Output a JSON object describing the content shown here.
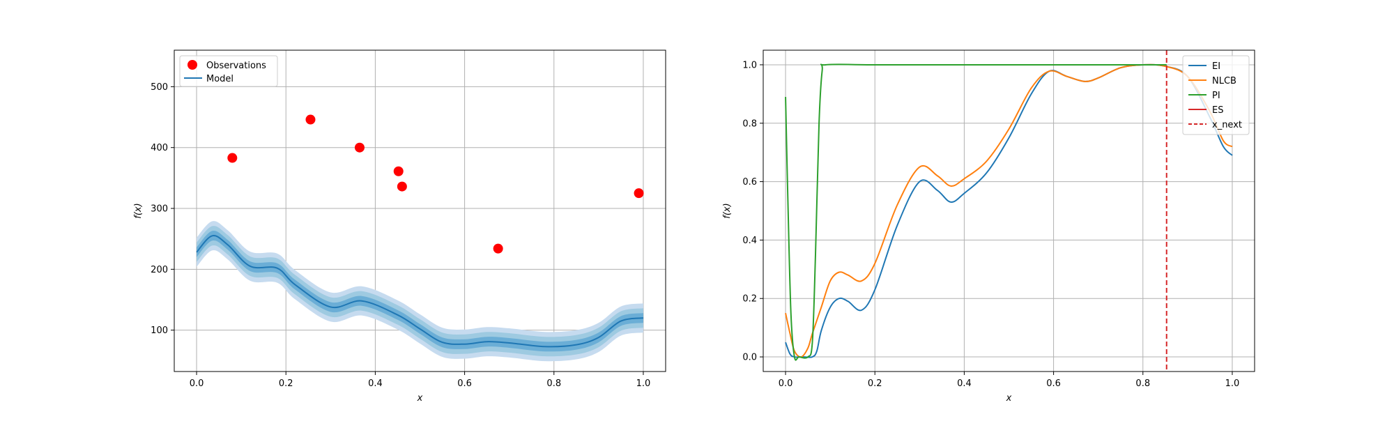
{
  "chart_data": [
    {
      "type": "scatter+line",
      "xlabel": "x",
      "ylabel": "f(x)",
      "xlim": [
        -0.05,
        1.05
      ],
      "ylim": [
        32,
        560
      ],
      "xticks": [
        0.0,
        0.2,
        0.4,
        0.6,
        0.8,
        1.0
      ],
      "xtick_labels": [
        "0.0",
        "0.2",
        "0.4",
        "0.6",
        "0.8",
        "1.0"
      ],
      "yticks": [
        100,
        200,
        300,
        400,
        500
      ],
      "ytick_labels": [
        "100",
        "200",
        "300",
        "400",
        "500"
      ],
      "grid": true,
      "legend_position": "top-left",
      "legend": [
        {
          "label": "Observations",
          "marker": "circle",
          "color": "#ff0000"
        },
        {
          "label": "Model",
          "marker": "line",
          "color": "#1f77b4"
        }
      ],
      "observations": {
        "name": "Observations",
        "x": [
          0.08,
          0.255,
          0.365,
          0.452,
          0.46,
          0.675,
          0.99
        ],
        "y": [
          383,
          446,
          400,
          361,
          336,
          234,
          325
        ]
      },
      "model": {
        "name": "Model",
        "x": [
          0.0,
          0.035,
          0.07,
          0.12,
          0.18,
          0.22,
          0.3,
          0.37,
          0.45,
          0.5,
          0.55,
          0.6,
          0.65,
          0.7,
          0.78,
          0.85,
          0.9,
          0.95,
          1.0
        ],
        "y": [
          228,
          255,
          240,
          205,
          202,
          175,
          138,
          148,
          125,
          102,
          80,
          77,
          81,
          79,
          73,
          76,
          88,
          115,
          120
        ],
        "band_widths": [
          8,
          16,
          24
        ]
      }
    },
    {
      "type": "line",
      "xlabel": "x",
      "ylabel": "f(x)",
      "xlim": [
        -0.05,
        1.05
      ],
      "ylim": [
        -0.05,
        1.05
      ],
      "xticks": [
        0.0,
        0.2,
        0.4,
        0.6,
        0.8,
        1.0
      ],
      "xtick_labels": [
        "0.0",
        "0.2",
        "0.4",
        "0.6",
        "0.8",
        "1.0"
      ],
      "yticks": [
        0.0,
        0.2,
        0.4,
        0.6,
        0.8,
        1.0
      ],
      "ytick_labels": [
        "0.0",
        "0.2",
        "0.4",
        "0.6",
        "0.8",
        "1.0"
      ],
      "grid": true,
      "legend_position": "top-right",
      "vline": {
        "name": "x_next",
        "x": 0.853,
        "color": "#d62728",
        "style": "dashed"
      },
      "series": [
        {
          "name": "EI",
          "color": "#1f77b4",
          "x": [
            0.0,
            0.01,
            0.02,
            0.04,
            0.06,
            0.07,
            0.08,
            0.1,
            0.12,
            0.14,
            0.17,
            0.2,
            0.25,
            0.3,
            0.34,
            0.37,
            0.4,
            0.45,
            0.5,
            0.55,
            0.59,
            0.63,
            0.67,
            0.7,
            0.75,
            0.8,
            0.85,
            0.9,
            0.95,
            0.98,
            1.0
          ],
          "y": [
            0.05,
            0.01,
            0.0,
            0.0,
            0.0,
            0.02,
            0.09,
            0.17,
            0.2,
            0.19,
            0.16,
            0.23,
            0.45,
            0.6,
            0.57,
            0.53,
            0.56,
            0.63,
            0.75,
            0.9,
            0.978,
            0.96,
            0.943,
            0.955,
            0.99,
            1.0,
            0.995,
            0.96,
            0.82,
            0.72,
            0.69
          ]
        },
        {
          "name": "NLCB",
          "color": "#ff7f0e",
          "x": [
            0.0,
            0.01,
            0.02,
            0.035,
            0.05,
            0.06,
            0.08,
            0.1,
            0.12,
            0.14,
            0.17,
            0.2,
            0.25,
            0.3,
            0.34,
            0.37,
            0.4,
            0.45,
            0.5,
            0.55,
            0.59,
            0.63,
            0.67,
            0.7,
            0.75,
            0.8,
            0.85,
            0.9,
            0.95,
            0.98,
            1.0
          ],
          "y": [
            0.15,
            0.08,
            0.02,
            0.0,
            0.03,
            0.08,
            0.17,
            0.26,
            0.29,
            0.28,
            0.26,
            0.32,
            0.52,
            0.65,
            0.62,
            0.585,
            0.61,
            0.67,
            0.78,
            0.92,
            0.978,
            0.96,
            0.943,
            0.955,
            0.99,
            1.0,
            0.995,
            0.96,
            0.84,
            0.74,
            0.72
          ]
        },
        {
          "name": "PI",
          "color": "#2ca02c",
          "x": [
            0.0,
            0.005,
            0.012,
            0.02,
            0.03,
            0.05,
            0.06,
            0.067,
            0.075,
            0.082,
            0.09,
            0.2,
            0.4,
            0.6,
            0.8,
            0.853
          ],
          "y": [
            0.89,
            0.55,
            0.15,
            0.0,
            0.0,
            0.0,
            0.05,
            0.35,
            0.8,
            0.98,
            1.0,
            1.0,
            1.0,
            1.0,
            1.0,
            1.0
          ]
        },
        {
          "name": "ES",
          "color": "#d62728",
          "x": [],
          "y": []
        }
      ]
    }
  ]
}
